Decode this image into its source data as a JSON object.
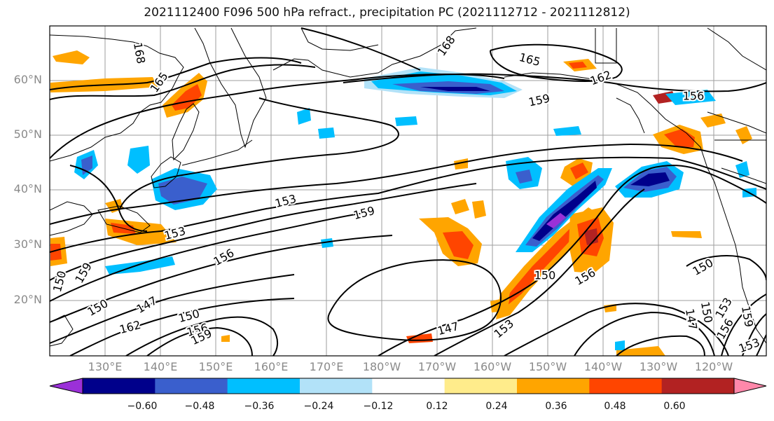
{
  "title": "2021112400 F096 500 hPa refract., precipitation PC (2021112712 - 2021112812)",
  "lat_labels": [
    "60°N",
    "50°N",
    "40°N",
    "30°N",
    "20°N"
  ],
  "lon_labels": [
    "130°E",
    "140°E",
    "150°E",
    "160°E",
    "170°E",
    "180°W",
    "170°W",
    "160°W",
    "150°W",
    "140°W",
    "130°W",
    "120°W"
  ],
  "contour_labels": [
    "168",
    "165",
    "168",
    "165",
    "162",
    "159",
    "156",
    "159",
    "153",
    "153",
    "150",
    "156",
    "159",
    "150",
    "147",
    "150",
    "156",
    "159",
    "162",
    "147",
    "153",
    "150",
    "156",
    "150",
    "147",
    "150",
    "153",
    "156",
    "159",
    "153"
  ],
  "colorbar": {
    "ticks": [
      "−0.60",
      "−0.48",
      "−0.36",
      "−0.24",
      "−0.12",
      "0.12",
      "0.24",
      "0.36",
      "0.48",
      "0.60"
    ],
    "colors": [
      "#9b30d8",
      "#00008b",
      "#3a5fcd",
      "#00bfff",
      "#b2e2f8",
      "#ffffff",
      "#ffec8b",
      "#ffa500",
      "#ff4500",
      "#b22222",
      "#ff88aa"
    ]
  }
}
